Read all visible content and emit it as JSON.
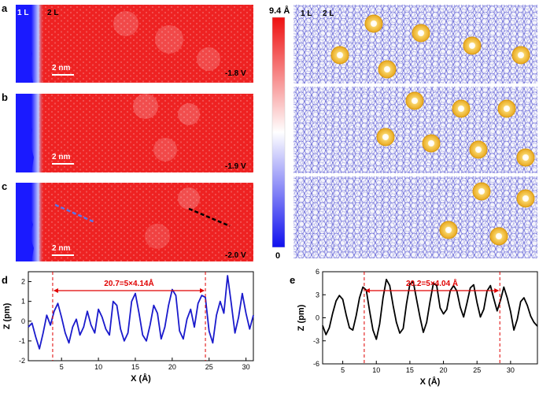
{
  "panels": {
    "a": {
      "letter": "a",
      "voltage": "-1.8 V"
    },
    "b": {
      "letter": "b",
      "voltage": "-1.9 V"
    },
    "c": {
      "letter": "c",
      "voltage": "-2.0 V"
    },
    "d": {
      "letter": "d"
    },
    "e": {
      "letter": "e"
    }
  },
  "image_labels": {
    "layer1": "1 L",
    "layer2": "2 L",
    "scale_bar": "2 nm"
  },
  "colorbar": {
    "max_label": "9.4 Å",
    "min_label": "0"
  },
  "model_labels": {
    "layer1": "1 L",
    "layer2": "2 L"
  },
  "colors": {
    "red": "#ee2020",
    "blue": "#1a1aff",
    "line_d": "#1a1acc",
    "line_e": "#000000",
    "annot": "#e00000"
  },
  "chart_data": [
    {
      "type": "line",
      "panel": "d",
      "xlabel": "X (Å)",
      "ylabel": "Z (pm)",
      "xlim": [
        0.5,
        31
      ],
      "ylim": [
        -2,
        2.5
      ],
      "xticks": [
        5,
        10,
        15,
        20,
        25,
        30
      ],
      "yticks": [
        -2,
        -1,
        0,
        1,
        2
      ],
      "annotation": {
        "text": "20.7=5×4.14Å",
        "x_start": 3.8,
        "x_end": 24.5
      },
      "series": [
        {
          "name": "profile",
          "x": [
            0.5,
            1.0,
            1.5,
            2.0,
            2.5,
            3.0,
            3.5,
            4.0,
            4.5,
            5.0,
            5.5,
            6.0,
            6.5,
            7.0,
            7.5,
            8.0,
            8.5,
            9.0,
            9.5,
            10.0,
            10.5,
            11.0,
            11.5,
            12.0,
            12.5,
            13.0,
            13.5,
            14.0,
            14.5,
            15.0,
            15.5,
            16.0,
            16.5,
            17.0,
            17.5,
            18.0,
            18.5,
            19.0,
            19.5,
            20.0,
            20.5,
            21.0,
            21.5,
            22.0,
            22.5,
            23.0,
            23.5,
            24.0,
            24.5,
            25.0,
            25.5,
            26.0,
            26.5,
            27.0,
            27.5,
            28.0,
            28.5,
            29.0,
            29.5,
            30.0,
            30.5,
            31.0
          ],
          "values": [
            -0.3,
            -0.1,
            -0.8,
            -1.4,
            -0.6,
            0.3,
            -0.2,
            0.5,
            0.9,
            0.2,
            -0.6,
            -1.1,
            -0.3,
            0.1,
            -0.7,
            -0.3,
            0.5,
            -0.2,
            -0.6,
            0.6,
            0.2,
            -0.4,
            -0.7,
            1.0,
            0.8,
            -0.4,
            -1.0,
            -0.6,
            1.0,
            1.4,
            0.4,
            -0.7,
            -1.0,
            -0.2,
            0.8,
            0.4,
            -0.9,
            -0.3,
            0.8,
            1.6,
            1.3,
            -0.5,
            -0.9,
            0.1,
            0.6,
            -0.3,
            0.9,
            1.3,
            1.2,
            -0.5,
            -1.1,
            0.3,
            1.0,
            0.4,
            2.3,
            0.9,
            -0.6,
            0.2,
            1.4,
            0.4,
            -0.4,
            0.3
          ]
        }
      ]
    },
    {
      "type": "line",
      "panel": "e",
      "xlabel": "X (Å)",
      "ylabel": "Z (pm)",
      "xlim": [
        2,
        34
      ],
      "ylim": [
        -6,
        6
      ],
      "xticks": [
        5,
        10,
        15,
        20,
        25,
        30
      ],
      "yticks": [
        -6,
        -3,
        0,
        3,
        6
      ],
      "annotation": {
        "text": "20.2=5×4.04 Å",
        "x_start": 8.2,
        "x_end": 28.4
      },
      "series": [
        {
          "name": "profile",
          "x": [
            2.0,
            2.5,
            3.0,
            3.5,
            4.0,
            4.5,
            5.0,
            5.5,
            6.0,
            6.5,
            7.0,
            7.5,
            8.0,
            8.5,
            9.0,
            9.5,
            10.0,
            10.5,
            11.0,
            11.5,
            12.0,
            12.5,
            13.0,
            13.5,
            14.0,
            14.5,
            15.0,
            15.5,
            16.0,
            16.5,
            17.0,
            17.5,
            18.0,
            18.5,
            19.0,
            19.5,
            20.0,
            20.5,
            21.0,
            21.5,
            22.0,
            22.5,
            23.0,
            23.5,
            24.0,
            24.5,
            25.0,
            25.5,
            26.0,
            26.5,
            27.0,
            27.5,
            28.0,
            28.5,
            29.0,
            29.5,
            30.0,
            30.5,
            31.0,
            31.5,
            32.0,
            32.5,
            33.0,
            33.5,
            34.0
          ],
          "values": [
            -1.0,
            -2.2,
            -1.3,
            0.6,
            2.2,
            2.9,
            2.4,
            0.4,
            -1.3,
            -1.6,
            0.3,
            2.6,
            4.0,
            3.6,
            0.9,
            -1.6,
            -2.8,
            -0.8,
            2.6,
            5.0,
            4.2,
            1.6,
            -0.6,
            -2.0,
            -1.4,
            1.8,
            4.4,
            4.7,
            2.4,
            0.1,
            -1.9,
            -0.6,
            2.1,
            4.5,
            4.2,
            1.3,
            0.5,
            1.1,
            3.5,
            4.2,
            3.5,
            1.4,
            0.1,
            1.9,
            3.9,
            4.3,
            2.0,
            0.1,
            1.1,
            3.5,
            4.2,
            2.5,
            0.9,
            2.3,
            4.0,
            2.6,
            0.8,
            -1.6,
            -0.2,
            2.1,
            2.6,
            1.6,
            0.2,
            -0.6,
            -1.1
          ]
        }
      ]
    }
  ]
}
